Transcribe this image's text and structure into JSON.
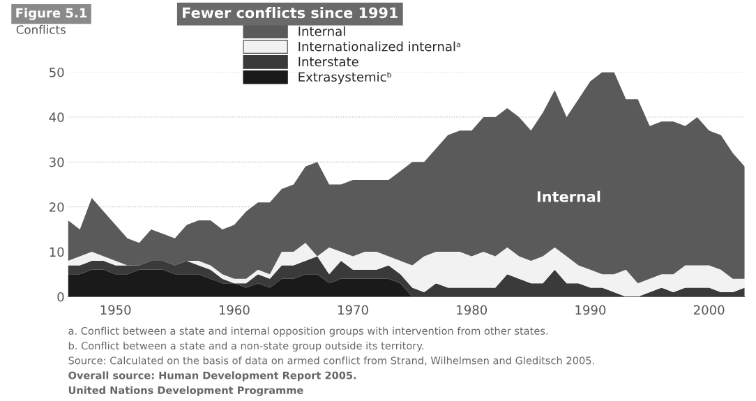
{
  "chart_data": {
    "type": "area",
    "stacked": true,
    "title": "Fewer conflicts since 1991",
    "ylabel": "Conflicts",
    "x": [
      1946,
      1947,
      1948,
      1949,
      1950,
      1951,
      1952,
      1953,
      1954,
      1955,
      1956,
      1957,
      1958,
      1959,
      1960,
      1961,
      1962,
      1963,
      1964,
      1965,
      1966,
      1967,
      1968,
      1969,
      1970,
      1971,
      1972,
      1973,
      1974,
      1975,
      1976,
      1977,
      1978,
      1979,
      1980,
      1981,
      1982,
      1983,
      1984,
      1985,
      1986,
      1987,
      1988,
      1989,
      1990,
      1991,
      1992,
      1993,
      1994,
      1995,
      1996,
      1997,
      1998,
      1999,
      2000,
      2001,
      2002,
      2003
    ],
    "series": [
      {
        "name": "Extrasystemicᵇ",
        "color": "#1a1a1a",
        "values": [
          5,
          5,
          6,
          6,
          5,
          5,
          6,
          6,
          6,
          5,
          5,
          5,
          4,
          3,
          3,
          2,
          3,
          2,
          4,
          4,
          5,
          5,
          3,
          4,
          4,
          4,
          4,
          4,
          3,
          0,
          0,
          0,
          0,
          0,
          0,
          0,
          0,
          0,
          0,
          0,
          0,
          0,
          0,
          0,
          0,
          0,
          0,
          0,
          0,
          0,
          0,
          0,
          0,
          0,
          0,
          0,
          0,
          0
        ]
      },
      {
        "name": "Interstate",
        "color": "#3a3a3a",
        "values": [
          2,
          2,
          2,
          2,
          2,
          2,
          1,
          2,
          2,
          2,
          3,
          2,
          2,
          1,
          0,
          1,
          2,
          2,
          3,
          3,
          3,
          4,
          2,
          4,
          2,
          2,
          2,
          3,
          2,
          2,
          1,
          3,
          2,
          2,
          2,
          2,
          2,
          5,
          4,
          3,
          3,
          6,
          3,
          3,
          2,
          2,
          1,
          0,
          0,
          1,
          2,
          1,
          2,
          2,
          2,
          1,
          1,
          2
        ]
      },
      {
        "name": "Internationalized internalᵃ",
        "color": "#f2f2f2",
        "values": [
          1,
          2,
          2,
          1,
          1,
          0,
          0,
          0,
          0,
          0,
          0,
          1,
          1,
          1,
          1,
          1,
          1,
          1,
          3,
          3,
          4,
          0,
          6,
          2,
          3,
          4,
          4,
          2,
          3,
          5,
          8,
          7,
          8,
          8,
          7,
          8,
          7,
          6,
          5,
          5,
          6,
          5,
          6,
          4,
          4,
          3,
          4,
          6,
          3,
          3,
          3,
          4,
          5,
          5,
          5,
          5,
          3,
          2
        ]
      },
      {
        "name": "Internal",
        "color": "#5a5a5a",
        "values": [
          9,
          6,
          12,
          10,
          8,
          6,
          5,
          7,
          6,
          6,
          8,
          9,
          10,
          10,
          12,
          15,
          15,
          16,
          14,
          15,
          17,
          21,
          14,
          15,
          17,
          16,
          16,
          17,
          20,
          23,
          21,
          23,
          26,
          27,
          28,
          30,
          31,
          31,
          31,
          29,
          32,
          35,
          31,
          37,
          42,
          45,
          45,
          38,
          41,
          34,
          34,
          34,
          31,
          33,
          30,
          30,
          28,
          25
        ]
      }
    ],
    "xlim": [
      1946,
      2003
    ],
    "xticks": [
      1950,
      1960,
      1970,
      1980,
      1990,
      2000
    ],
    "ylim": [
      0,
      50
    ],
    "yticks": [
      0,
      10,
      20,
      30,
      40,
      50
    ],
    "grid": "y",
    "legend": "top",
    "annotations": [
      "Figure 5.1",
      "Internal",
      "a. Conflict between a state and internal opposition groups with intervention from other states.",
      "b. Conflict between a state and a non-state group outside its territory.",
      "Source: Calculated on the basis of data on armed conflict from Strand, Wilhelmsen and Gleditsch 2005.",
      "Overall source: Human Development Report 2005.",
      "United Nations Development Programme"
    ]
  }
}
